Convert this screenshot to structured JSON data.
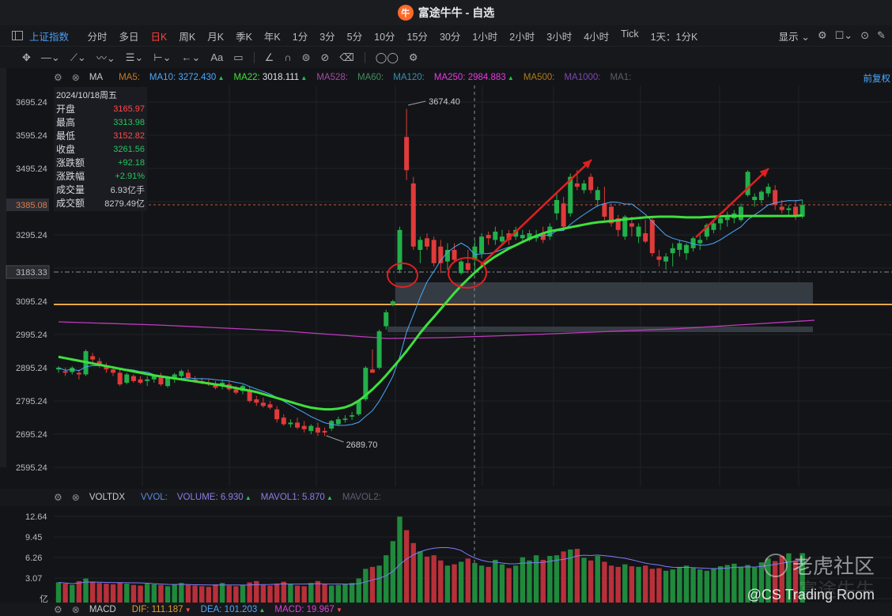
{
  "window": {
    "title": "富途牛牛 - 自选",
    "logo_glyph": "牛"
  },
  "periodbar": {
    "index_name": "上证指数",
    "periods": [
      "分时",
      "多日",
      "日K",
      "周K",
      "月K",
      "季K",
      "年K",
      "1分",
      "3分",
      "5分",
      "10分",
      "15分",
      "30分",
      "1小时",
      "2小时",
      "3小时",
      "4小时",
      "Tick",
      "1天：1分K"
    ],
    "active_period": "日K",
    "display_label": "显示"
  },
  "main_indicators": {
    "name": "MA",
    "items": [
      {
        "label": "MA5:",
        "value": "",
        "color": "#c77a2a"
      },
      {
        "label": "MA10:",
        "value": "3272.430",
        "color": "#4aa8ff",
        "arrow": "▲"
      },
      {
        "label": "MA22:",
        "value": "3018.111",
        "color": "#3ee03e",
        "arrow": "▲"
      },
      {
        "label": "MA528:",
        "value": "",
        "color": "#a14ea0"
      },
      {
        "label": "MA60:",
        "value": "",
        "color": "#3f8f5f"
      },
      {
        "label": "MA120:",
        "value": "",
        "color": "#3a8fb0"
      },
      {
        "label": "MA250:",
        "value": "2984.883",
        "color": "#e23de0",
        "arrow": "▲"
      },
      {
        "label": "MA500:",
        "value": "",
        "color": "#b07a1a"
      },
      {
        "label": "MA1000:",
        "value": "",
        "color": "#7a4ab0"
      },
      {
        "label": "MA1:",
        "value": "",
        "color": "#5a5f68"
      }
    ],
    "adjust_label": "前复权"
  },
  "ohlc_box": {
    "date": "2024/10/18周五",
    "rows": [
      {
        "label": "开盘",
        "value": "3165.97",
        "color": "#ff4a4a"
      },
      {
        "label": "最高",
        "value": "3313.98",
        "color": "#22c55e"
      },
      {
        "label": "最低",
        "value": "3152.82",
        "color": "#ff4a4a"
      },
      {
        "label": "收盘",
        "value": "3261.56",
        "color": "#22c55e"
      },
      {
        "label": "涨跌额",
        "value": "+92.18",
        "color": "#22c55e"
      },
      {
        "label": "涨跌幅",
        "value": "+2.91%",
        "color": "#22c55e"
      },
      {
        "label": "成交量",
        "value": "6.93亿手",
        "color": "#c9ccd2"
      },
      {
        "label": "成交额",
        "value": "8279.49亿",
        "color": "#c9ccd2"
      }
    ]
  },
  "price_axis": {
    "labels": [
      "3695.24",
      "3595.24",
      "3495.24",
      "3385.08",
      "3295.24",
      "3183.33",
      "3095.24",
      "2995.24",
      "2895.24",
      "2795.24",
      "2695.24",
      "2595.24"
    ],
    "current_price": "3385.08",
    "crosshair_price": "3183.33"
  },
  "annotations": {
    "high_label": "3674.40",
    "low_label": "2689.70"
  },
  "volume_indicators": {
    "name": "VOLTDX",
    "items": [
      {
        "label": "VVOL:",
        "value": "",
        "color": "#5a8ae0"
      },
      {
        "label": "VOLUME:",
        "value": "6.930",
        "color": "#8b7de8",
        "arrow": "▲"
      },
      {
        "label": "MAVOL1:",
        "value": "5.870",
        "color": "#8b7de8",
        "arrow": "▲"
      },
      {
        "label": "MAVOL2:",
        "value": "",
        "color": "#5a5f78"
      }
    ],
    "axis_labels": [
      "12.64",
      "9.45",
      "6.26",
      "3.07",
      "亿"
    ]
  },
  "macd_indicators": {
    "name": "MACD",
    "items": [
      {
        "label": "DIF:",
        "value": "111.187",
        "color": "#e0a030",
        "arrow": "▼"
      },
      {
        "label": "DEA:",
        "value": "101.203",
        "color": "#4aa8ff",
        "arrow": "▲"
      },
      {
        "label": "MACD:",
        "value": "19.967",
        "color": "#e23de0",
        "arrow": "▼"
      }
    ]
  },
  "watermark": {
    "brand": "老虎社区",
    "ghost": "富途牛牛",
    "credit": "@CS Trading Room"
  },
  "colors": {
    "up": "#e03a3a",
    "down": "#22b04a",
    "ma22": "#3ee03e",
    "ma10": "#4aa8ff",
    "ma250": "#c03ac0",
    "hline": "#e8a84a"
  },
  "chart_data": {
    "type": "candlestick",
    "ylim": [
      2560,
      3760
    ],
    "candles": [
      [
        2890,
        2900,
        2880,
        2895
      ],
      [
        2885,
        2895,
        2870,
        2880
      ],
      [
        2882,
        2900,
        2875,
        2895
      ],
      [
        2880,
        2890,
        2860,
        2875
      ],
      [
        2875,
        2950,
        2870,
        2945
      ],
      [
        2930,
        2940,
        2910,
        2920
      ],
      [
        2915,
        2925,
        2895,
        2900
      ],
      [
        2900,
        2910,
        2880,
        2890
      ],
      [
        2890,
        2900,
        2870,
        2880
      ],
      [
        2880,
        2895,
        2840,
        2845
      ],
      [
        2850,
        2880,
        2845,
        2875
      ],
      [
        2870,
        2875,
        2850,
        2855
      ],
      [
        2860,
        2870,
        2845,
        2850
      ],
      [
        2855,
        2870,
        2840,
        2860
      ],
      [
        2860,
        2875,
        2850,
        2870
      ],
      [
        2870,
        2880,
        2840,
        2845
      ],
      [
        2840,
        2870,
        2835,
        2865
      ],
      [
        2860,
        2880,
        2850,
        2875
      ],
      [
        2870,
        2890,
        2860,
        2885
      ],
      [
        2880,
        2890,
        2860,
        2865
      ],
      [
        2860,
        2870,
        2850,
        2855
      ],
      [
        2855,
        2865,
        2845,
        2850
      ],
      [
        2850,
        2860,
        2840,
        2845
      ],
      [
        2845,
        2855,
        2830,
        2835
      ],
      [
        2840,
        2860,
        2830,
        2850
      ],
      [
        2845,
        2855,
        2825,
        2830
      ],
      [
        2830,
        2840,
        2815,
        2820
      ],
      [
        2825,
        2845,
        2815,
        2840
      ],
      [
        2830,
        2840,
        2790,
        2795
      ],
      [
        2800,
        2810,
        2780,
        2790
      ],
      [
        2790,
        2805,
        2775,
        2780
      ],
      [
        2785,
        2795,
        2770,
        2775
      ],
      [
        2770,
        2780,
        2730,
        2740
      ],
      [
        2745,
        2755,
        2720,
        2725
      ],
      [
        2725,
        2740,
        2715,
        2730
      ],
      [
        2730,
        2745,
        2710,
        2715
      ],
      [
        2720,
        2735,
        2700,
        2710
      ],
      [
        2705,
        2725,
        2695,
        2720
      ],
      [
        2715,
        2730,
        2690,
        2700
      ],
      [
        2705,
        2715,
        2689.7,
        2700
      ],
      [
        2712,
        2738,
        2705,
        2735
      ],
      [
        2725,
        2748,
        2720,
        2740
      ],
      [
        2738,
        2752,
        2730,
        2742
      ],
      [
        2748,
        2762,
        2738,
        2752
      ],
      [
        2755,
        2800,
        2750,
        2795
      ],
      [
        2800,
        2900,
        2795,
        2895
      ],
      [
        2890,
        2950,
        2880,
        2880
      ],
      [
        2895,
        3010,
        2890,
        3005
      ],
      [
        3020,
        3070,
        3010,
        3062
      ],
      [
        3085,
        3100,
        3080,
        3095
      ],
      [
        3190,
        3320,
        3180,
        3310
      ],
      [
        3590,
        3674.4,
        3460,
        3490
      ],
      [
        3450,
        3470,
        3250,
        3260
      ],
      [
        3250,
        3290,
        3210,
        3280
      ],
      [
        3285,
        3300,
        3250,
        3260
      ],
      [
        3280,
        3290,
        3200,
        3210
      ],
      [
        3260,
        3280,
        3180,
        3210
      ],
      [
        3215,
        3270,
        3190,
        3250
      ],
      [
        3250,
        3270,
        3215,
        3220
      ],
      [
        3180,
        3220,
        3175,
        3215
      ],
      [
        3210,
        3250,
        3180,
        3190
      ],
      [
        3220,
        3280,
        3190,
        3260
      ],
      [
        3240,
        3300,
        3225,
        3290
      ],
      [
        3295,
        3305,
        3265,
        3285
      ],
      [
        3280,
        3320,
        3265,
        3305
      ],
      [
        3275,
        3310,
        3265,
        3290
      ],
      [
        3300,
        3310,
        3265,
        3280
      ],
      [
        3290,
        3320,
        3280,
        3310
      ],
      [
        3285,
        3310,
        3270,
        3295
      ],
      [
        3280,
        3310,
        3275,
        3300
      ],
      [
        3285,
        3310,
        3275,
        3290
      ],
      [
        3300,
        3320,
        3270,
        3280
      ],
      [
        3290,
        3330,
        3280,
        3320
      ],
      [
        3360,
        3420,
        3340,
        3400
      ],
      [
        3390,
        3410,
        3310,
        3320
      ],
      [
        3360,
        3480,
        3350,
        3470
      ],
      [
        3450,
        3490,
        3430,
        3440
      ],
      [
        3430,
        3460,
        3420,
        3450
      ],
      [
        3470,
        3480,
        3420,
        3430
      ],
      [
        3400,
        3440,
        3380,
        3430
      ],
      [
        3390,
        3440,
        3340,
        3350
      ],
      [
        3380,
        3390,
        3320,
        3330
      ],
      [
        3345,
        3355,
        3290,
        3310
      ],
      [
        3290,
        3355,
        3280,
        3350
      ],
      [
        3330,
        3350,
        3290,
        3320
      ],
      [
        3290,
        3330,
        3270,
        3320
      ],
      [
        3300,
        3340,
        3270,
        3275
      ],
      [
        3340,
        3350,
        3230,
        3240
      ],
      [
        3230,
        3250,
        3200,
        3220
      ],
      [
        3215,
        3240,
        3190,
        3230
      ],
      [
        3240,
        3270,
        3200,
        3255
      ],
      [
        3250,
        3280,
        3230,
        3270
      ],
      [
        3240,
        3270,
        3220,
        3265
      ],
      [
        3255,
        3290,
        3245,
        3285
      ],
      [
        3270,
        3295,
        3250,
        3280
      ],
      [
        3290,
        3330,
        3280,
        3325
      ],
      [
        3310,
        3340,
        3300,
        3330
      ],
      [
        3330,
        3350,
        3310,
        3345
      ],
      [
        3340,
        3365,
        3320,
        3355
      ],
      [
        3345,
        3370,
        3330,
        3360
      ],
      [
        3340,
        3390,
        3335,
        3380
      ],
      [
        3415,
        3490,
        3410,
        3485
      ],
      [
        3400,
        3420,
        3380,
        3410
      ],
      [
        3400,
        3430,
        3390,
        3425
      ],
      [
        3420,
        3450,
        3410,
        3440
      ],
      [
        3430,
        3445,
        3370,
        3385
      ],
      [
        3380,
        3400,
        3360,
        3370
      ],
      [
        3370,
        3385,
        3350,
        3375
      ],
      [
        3380,
        3400,
        3340,
        3350
      ],
      [
        3350,
        3400,
        3345,
        3385
      ]
    ],
    "ma22": [
      2928,
      2924,
      2920,
      2916,
      2912,
      2908,
      2904,
      2900,
      2896,
      2892,
      2888,
      2884,
      2880,
      2876,
      2872,
      2869,
      2866,
      2863,
      2860,
      2857,
      2854,
      2851,
      2848,
      2845,
      2842,
      2838,
      2834,
      2830,
      2826,
      2822,
      2816,
      2810,
      2804,
      2798,
      2792,
      2786,
      2780,
      2775,
      2772,
      2770,
      2770,
      2772,
      2776,
      2784,
      2796,
      2812,
      2830,
      2850,
      2872,
      2896,
      2920,
      2945,
      2972,
      3000,
      3025,
      3048,
      3072,
      3096,
      3120,
      3142,
      3162,
      3182,
      3200,
      3216,
      3230,
      3242,
      3254,
      3264,
      3274,
      3284,
      3292,
      3300,
      3306,
      3310,
      3314,
      3318,
      3322,
      3326,
      3330,
      3333,
      3335,
      3337,
      3339,
      3342,
      3344,
      3346,
      3348,
      3349,
      3350,
      3350,
      3350,
      3349,
      3348,
      3348,
      3348,
      3349,
      3350,
      3351,
      3352,
      3352,
      3352,
      3352,
      3352,
      3352,
      3352,
      3352,
      3352,
      3352,
      3352,
      3354
    ],
    "volume": [
      2.4,
      2.2,
      2.0,
      2.6,
      3.0,
      2.5,
      2.3,
      2.2,
      2.1,
      2.4,
      2.2,
      2.0,
      1.9,
      2.2,
      2.1,
      2.0,
      1.8,
      2.1,
      2.3,
      2.0,
      1.9,
      1.8,
      1.7,
      2.1,
      2.3,
      1.9,
      1.8,
      2.0,
      2.4,
      2.6,
      2.0,
      1.9,
      2.2,
      2.5,
      2.1,
      1.9,
      1.8,
      2.3,
      2.6,
      2.2,
      1.9,
      2.0,
      2.1,
      2.3,
      3.0,
      4.5,
      4.8,
      5.0,
      6.6,
      8.8,
      12.6,
      10.5,
      8.5,
      7.2,
      6.4,
      6.6,
      5.8,
      5.0,
      5.2,
      5.6,
      6.1,
      5.4,
      5.0,
      4.8,
      5.9,
      5.2,
      4.6,
      5.0,
      6.3,
      5.8,
      6.6,
      5.9,
      6.5,
      6.6,
      7.2,
      7.5,
      7.6,
      6.2,
      5.8,
      6.5,
      5.6,
      5.0,
      4.8,
      5.2,
      4.9,
      4.8,
      5.0,
      4.5,
      4.6,
      4.2,
      4.4,
      4.8,
      5.0,
      4.6,
      4.4,
      4.2,
      4.6,
      4.9,
      5.1,
      5.3,
      4.8,
      5.1,
      4.7,
      5.5,
      6.1,
      5.7,
      6.5,
      6.9,
      5.8,
      6.93
    ]
  }
}
